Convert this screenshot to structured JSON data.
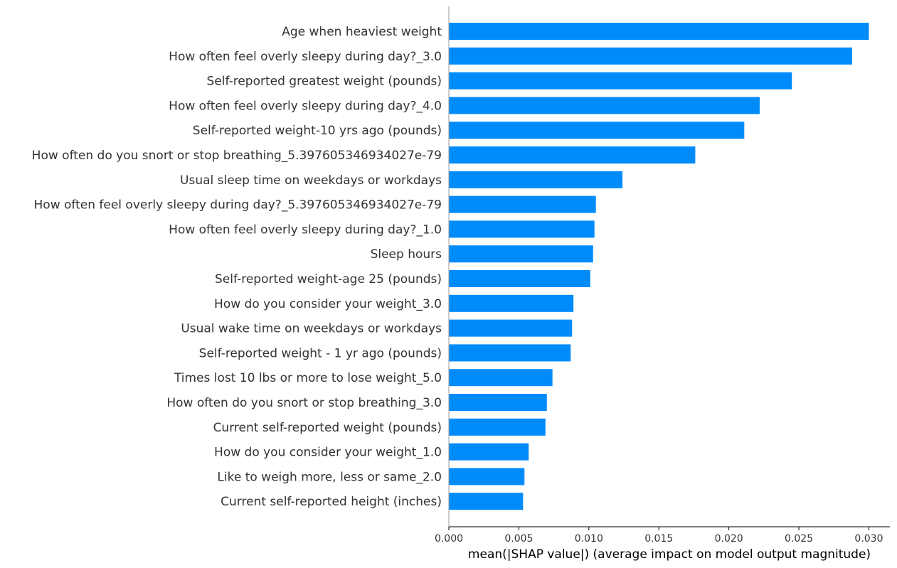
{
  "chart_data": {
    "type": "bar",
    "orientation": "horizontal",
    "xlabel": "mean(|SHAP value|) (average impact on model output magnitude)",
    "xlim": [
      0,
      0.0315
    ],
    "xticks": [
      "0.000",
      "0.005",
      "0.010",
      "0.015",
      "0.020",
      "0.025",
      "0.030"
    ],
    "bar_color": "#008bfb",
    "grid": false,
    "categories": [
      "Age when heaviest weight",
      "How often feel overly sleepy during day?_3.0",
      "Self-reported greatest weight (pounds)",
      "How often feel overly sleepy during day?_4.0",
      "Self-reported weight-10 yrs ago (pounds)",
      "How often do you snort or stop breathing_5.397605346934027e-79",
      "Usual sleep time on weekdays or workdays",
      "How often feel overly sleepy during day?_5.397605346934027e-79",
      "How often feel overly sleepy during day?_1.0",
      "Sleep hours",
      "Self-reported weight-age 25 (pounds)",
      "How do you consider your weight_3.0",
      "Usual wake time on weekdays or workdays",
      "Self-reported weight - 1 yr ago (pounds)",
      "Times lost 10 lbs or more to lose weight_5.0",
      "How often do you snort or stop breathing_3.0",
      "Current self-reported weight (pounds)",
      "How do you consider your weight_1.0",
      "Like to weigh more, less or same_2.0",
      "Current self-reported height (inches)"
    ],
    "values": [
      0.03,
      0.0288,
      0.0245,
      0.0222,
      0.0211,
      0.0176,
      0.0124,
      0.0105,
      0.0104,
      0.0103,
      0.0101,
      0.0089,
      0.0088,
      0.0087,
      0.0074,
      0.007,
      0.0069,
      0.0057,
      0.0054,
      0.0053
    ]
  }
}
